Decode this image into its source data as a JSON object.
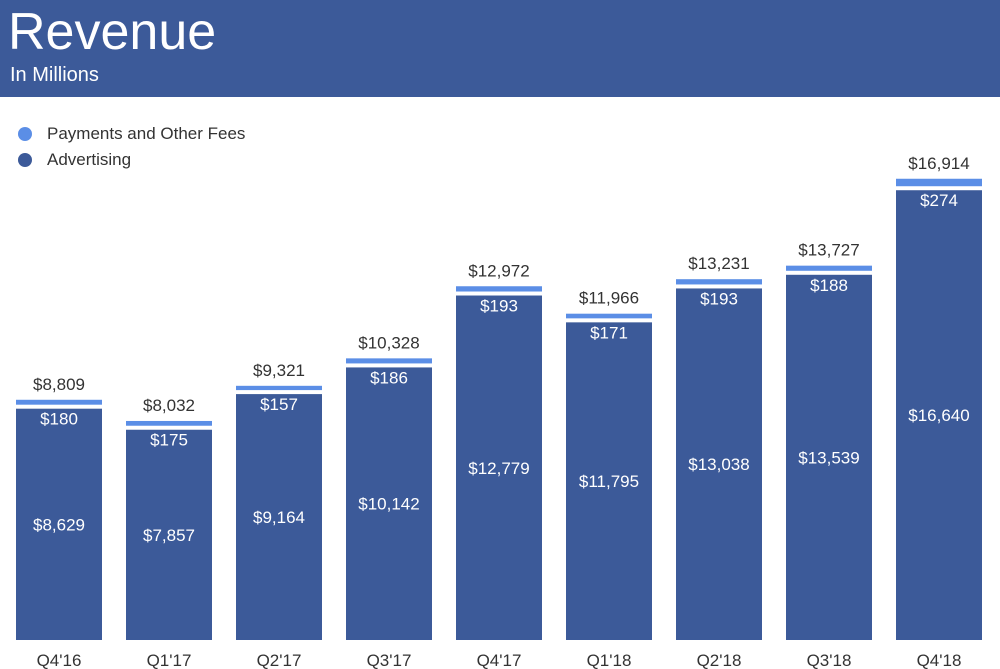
{
  "header": {
    "title": "Revenue",
    "subtitle": "In Millions",
    "background_color": "#3c5a99"
  },
  "legend": {
    "items": [
      {
        "label": "Payments and Other Fees",
        "color": "#5b8ee6",
        "icon": "circle-icon"
      },
      {
        "label": "Advertising",
        "color": "#3c5a99",
        "icon": "circle-icon"
      }
    ]
  },
  "chart_data": {
    "type": "bar",
    "stacked": true,
    "title": "Revenue",
    "subtitle": "In Millions",
    "xlabel": "",
    "ylabel": "",
    "ylim": [
      0,
      18000
    ],
    "grid": false,
    "legend_position": "top-left",
    "categories": [
      "Q4'16",
      "Q1'17",
      "Q2'17",
      "Q3'17",
      "Q4'17",
      "Q1'18",
      "Q2'18",
      "Q3'18",
      "Q4'18"
    ],
    "series": [
      {
        "name": "Advertising",
        "color": "#3c5a99",
        "values": [
          8629,
          7857,
          9164,
          10142,
          12779,
          11795,
          13038,
          13539,
          16640
        ],
        "labels": [
          "$8,629",
          "$7,857",
          "$9,164",
          "$10,142",
          "$12,779",
          "$11,795",
          "$13,038",
          "$13,539",
          "$16,640"
        ]
      },
      {
        "name": "Payments and Other Fees",
        "color": "#5b8ee6",
        "values": [
          180,
          175,
          157,
          186,
          193,
          171,
          193,
          188,
          274
        ],
        "labels": [
          "$180",
          "$175",
          "$157",
          "$186",
          "$193",
          "$171",
          "$193",
          "$188",
          "$274"
        ]
      }
    ],
    "totals": [
      8809,
      8032,
      9321,
      10328,
      12972,
      11966,
      13231,
      13727,
      16914
    ],
    "total_labels": [
      "$8,809",
      "$8,032",
      "$9,321",
      "$10,328",
      "$12,972",
      "$11,966",
      "$13,231",
      "$13,727",
      "$16,914"
    ]
  }
}
